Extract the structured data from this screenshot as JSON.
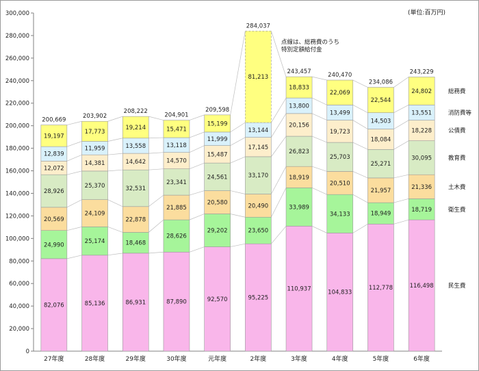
{
  "chart_data": {
    "type": "bar",
    "stacked": true,
    "unit_label": "(単位:百万円)",
    "annotation": [
      "点線は、総務費のうち",
      "特別定額給付金"
    ],
    "categories": [
      "27年度",
      "28年度",
      "29年度",
      "30年度",
      "元年度",
      "2年度",
      "3年度",
      "4年度",
      "5年度",
      "6年度"
    ],
    "totals": [
      "200,669",
      "203,902",
      "208,222",
      "204,901",
      "209,598",
      "284,037",
      "243,457",
      "240,470",
      "234,086",
      "243,229"
    ],
    "ylim": [
      0,
      300000
    ],
    "ytick_step": 20000,
    "grid": false,
    "legend": "right-inline",
    "series": [
      {
        "name": "民生費",
        "color": "#f9b6ea",
        "values": [
          82076,
          85136,
          86931,
          87890,
          92570,
          95225,
          110937,
          104833,
          112778,
          116498
        ]
      },
      {
        "name": "衛生費",
        "color": "#a6f59a",
        "values": [
          24990,
          25174,
          18468,
          28626,
          29202,
          23650,
          33989,
          34133,
          18949,
          18719
        ]
      },
      {
        "name": "土木費",
        "color": "#fbdd9e",
        "values": [
          20569,
          24109,
          22878,
          21885,
          20580,
          20490,
          18919,
          20510,
          21957,
          21336
        ]
      },
      {
        "name": "教育費",
        "color": "#d8ebc4",
        "values": [
          28926,
          25370,
          32531,
          23341,
          24561,
          33170,
          26823,
          25703,
          25271,
          30095
        ]
      },
      {
        "name": "公債費",
        "color": "#fdeecb",
        "values": [
          12072,
          14381,
          14642,
          14570,
          15487,
          17145,
          20156,
          19723,
          18084,
          18228
        ]
      },
      {
        "name": "消防費等",
        "color": "#d9f1fb",
        "values": [
          12839,
          11959,
          13558,
          13118,
          11999,
          13144,
          13800,
          13499,
          14503,
          13551
        ]
      },
      {
        "name": "総務費",
        "color": "#ffff80",
        "values": [
          19197,
          17773,
          19214,
          15471,
          15199,
          81213,
          18833,
          22069,
          22544,
          24802
        ]
      }
    ]
  }
}
